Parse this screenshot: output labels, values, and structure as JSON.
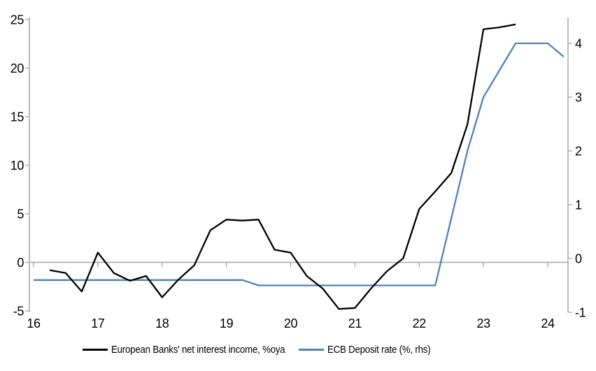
{
  "chart_data": {
    "type": "line",
    "title": "",
    "grid": false,
    "legend_position": "bottom",
    "x_axis": {
      "ticks": [
        2016,
        2017,
        2018,
        2019,
        2020,
        2021,
        2022,
        2023,
        2024
      ],
      "labels": [
        "16",
        "17",
        "18",
        "19",
        "20",
        "21",
        "22",
        "23",
        "24"
      ]
    },
    "left_axis": {
      "ticks": [
        25,
        20,
        15,
        10,
        5,
        0,
        -5
      ],
      "labels": [
        "25",
        "20",
        "15",
        "10",
        "5",
        "0",
        "-5"
      ],
      "range": [
        -5,
        25
      ]
    },
    "right_axis": {
      "ticks": [
        4,
        3,
        2,
        1,
        0,
        -1
      ],
      "labels": [
        "4",
        "3",
        "2",
        "1",
        "0",
        "-1"
      ],
      "range": [
        -1,
        4.5
      ]
    },
    "axis_color": "#a6a6a6",
    "series": [
      {
        "name": "European Banks' net interest income, %oya",
        "axis": "left",
        "color": "#000000",
        "x": [
          2016.25,
          2016.5,
          2016.75,
          2017.0,
          2017.25,
          2017.5,
          2017.75,
          2018.0,
          2018.25,
          2018.5,
          2018.75,
          2019.0,
          2019.25,
          2019.5,
          2019.75,
          2020.0,
          2020.25,
          2020.5,
          2020.75,
          2021.0,
          2021.25,
          2021.5,
          2021.75,
          2022.0,
          2022.25,
          2022.5,
          2022.75,
          2023.0,
          2023.25,
          2023.5
        ],
        "values": [
          -0.8,
          -1.1,
          -3.0,
          1.0,
          -1.1,
          -1.9,
          -1.4,
          -3.6,
          -1.8,
          -0.3,
          3.3,
          4.4,
          4.3,
          4.4,
          1.3,
          1.0,
          -1.4,
          -2.7,
          -4.8,
          -4.7,
          -2.7,
          -0.9,
          0.4,
          5.5,
          7.3,
          9.2,
          14.2,
          24.0,
          24.2,
          24.5
        ]
      },
      {
        "name": "ECB Deposit rate (%, rhs)",
        "axis": "right",
        "color": "#4F81BD",
        "x": [
          2016.0,
          2016.25,
          2016.5,
          2016.75,
          2017.0,
          2017.25,
          2017.5,
          2017.75,
          2018.0,
          2018.25,
          2018.5,
          2018.75,
          2019.0,
          2019.25,
          2019.5,
          2019.75,
          2020.0,
          2020.25,
          2020.5,
          2020.75,
          2021.0,
          2021.25,
          2021.5,
          2021.75,
          2022.0,
          2022.25,
          2022.5,
          2022.75,
          2023.0,
          2023.25,
          2023.5,
          2023.75,
          2024.0,
          2024.25
        ],
        "values": [
          -0.4,
          -0.4,
          -0.4,
          -0.4,
          -0.4,
          -0.4,
          -0.4,
          -0.4,
          -0.4,
          -0.4,
          -0.4,
          -0.4,
          -0.4,
          -0.4,
          -0.5,
          -0.5,
          -0.5,
          -0.5,
          -0.5,
          -0.5,
          -0.5,
          -0.5,
          -0.5,
          -0.5,
          -0.5,
          -0.5,
          0.75,
          2.0,
          3.0,
          3.5,
          4.0,
          4.0,
          4.0,
          3.75
        ]
      }
    ]
  },
  "legend": {
    "item1": "European Banks' net interest income, %oya",
    "item2": "ECB Deposit rate (%, rhs)"
  }
}
